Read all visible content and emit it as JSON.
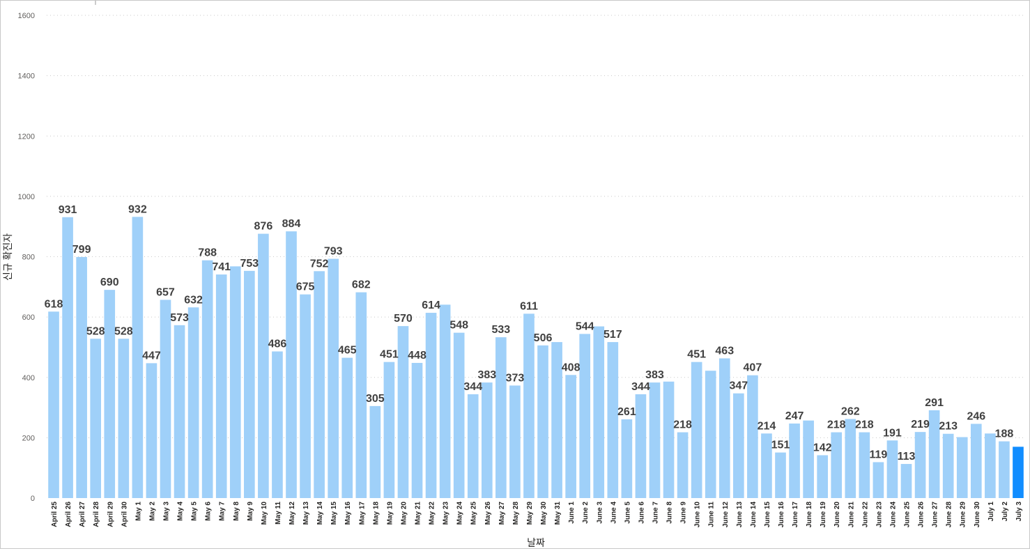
{
  "chart_data": {
    "type": "bar",
    "title": "",
    "xlabel": "날짜",
    "ylabel": "신규 확진자",
    "ylim": [
      0,
      1600
    ],
    "yticks": [
      0,
      200,
      400,
      600,
      800,
      1000,
      1200,
      1400,
      1600
    ],
    "grid": true,
    "base_color": "#9fd0f9",
    "highlight_color": "#118dff",
    "highlight_category": "July 3",
    "categories": [
      "April 25",
      "April 26",
      "April 27",
      "April 28",
      "April 29",
      "April 30",
      "May 1",
      "May 2",
      "May 3",
      "May 4",
      "May 5",
      "May 6",
      "May 7",
      "May 8",
      "May 9",
      "May 10",
      "May 11",
      "May 12",
      "May 13",
      "May 14",
      "May 15",
      "May 16",
      "May 17",
      "May 18",
      "May 19",
      "May 20",
      "May 21",
      "May 22",
      "May 23",
      "May 24",
      "May 25",
      "May 26",
      "May 27",
      "May 28",
      "May 29",
      "May 30",
      "May 31",
      "June 1",
      "June 2",
      "June 3",
      "June 4",
      "June 5",
      "June 6",
      "June 7",
      "June 8",
      "June 9",
      "June 10",
      "June 11",
      "June 12",
      "June 13",
      "June 14",
      "June 15",
      "June 16",
      "June 17",
      "June 18",
      "June 19",
      "June 20",
      "June 21",
      "June 22",
      "June 23",
      "June 24",
      "June 25",
      "June 26",
      "June 27",
      "June 28",
      "June 29",
      "June 30",
      "July 1",
      "July 2",
      "July 3"
    ],
    "values": [
      618,
      931,
      799,
      528,
      690,
      528,
      932,
      447,
      657,
      573,
      632,
      788,
      741,
      768,
      753,
      876,
      486,
      884,
      675,
      752,
      793,
      465,
      682,
      305,
      451,
      570,
      448,
      614,
      641,
      548,
      344,
      383,
      533,
      373,
      611,
      506,
      517,
      408,
      544,
      569,
      517,
      261,
      344,
      383,
      386,
      218,
      451,
      422,
      463,
      347,
      407,
      214,
      151,
      247,
      257,
      142,
      218,
      262,
      218,
      119,
      191,
      113,
      219,
      291,
      213,
      202,
      246,
      214,
      188,
      170
    ],
    "data_labels": [
      {
        "category": "April 25",
        "label": "618"
      },
      {
        "category": "April 26",
        "label": "931"
      },
      {
        "category": "April 27",
        "label": "799"
      },
      {
        "category": "April 28",
        "label": "528"
      },
      {
        "category": "April 29",
        "label": "690"
      },
      {
        "category": "April 30",
        "label": "528"
      },
      {
        "category": "May 1",
        "label": "932"
      },
      {
        "category": "May 2",
        "label": "447"
      },
      {
        "category": "May 3",
        "label": "657"
      },
      {
        "category": "May 4",
        "label": "573"
      },
      {
        "category": "May 5",
        "label": "632"
      },
      {
        "category": "May 6",
        "label": "788"
      },
      {
        "category": "May 7",
        "label": "741"
      },
      {
        "category": "May 9",
        "label": "753"
      },
      {
        "category": "May 10",
        "label": "876"
      },
      {
        "category": "May 11",
        "label": "486"
      },
      {
        "category": "May 12",
        "label": "884"
      },
      {
        "category": "May 13",
        "label": "675"
      },
      {
        "category": "May 14",
        "label": "752"
      },
      {
        "category": "May 15",
        "label": "793"
      },
      {
        "category": "May 16",
        "label": "465"
      },
      {
        "category": "May 17",
        "label": "682"
      },
      {
        "category": "May 18",
        "label": "305"
      },
      {
        "category": "May 19",
        "label": "451"
      },
      {
        "category": "May 20",
        "label": "570"
      },
      {
        "category": "May 21",
        "label": "448"
      },
      {
        "category": "May 22",
        "label": "614"
      },
      {
        "category": "May 24",
        "label": "548"
      },
      {
        "category": "May 25",
        "label": "344"
      },
      {
        "category": "May 26",
        "label": "383"
      },
      {
        "category": "May 27",
        "label": "533"
      },
      {
        "category": "May 28",
        "label": "373"
      },
      {
        "category": "May 29",
        "label": "611"
      },
      {
        "category": "May 30",
        "label": "506"
      },
      {
        "category": "June 1",
        "label": "408"
      },
      {
        "category": "June 2",
        "label": "544"
      },
      {
        "category": "June 4",
        "label": "517"
      },
      {
        "category": "June 5",
        "label": "261"
      },
      {
        "category": "June 6",
        "label": "344"
      },
      {
        "category": "June 7",
        "label": "383"
      },
      {
        "category": "June 9",
        "label": "218"
      },
      {
        "category": "June 10",
        "label": "451"
      },
      {
        "category": "June 12",
        "label": "463"
      },
      {
        "category": "June 13",
        "label": "347"
      },
      {
        "category": "June 14",
        "label": "407"
      },
      {
        "category": "June 15",
        "label": "214"
      },
      {
        "category": "June 16",
        "label": "151"
      },
      {
        "category": "June 17",
        "label": "247"
      },
      {
        "category": "June 19",
        "label": "142"
      },
      {
        "category": "June 20",
        "label": "218"
      },
      {
        "category": "June 21",
        "label": "262"
      },
      {
        "category": "June 22",
        "label": "218"
      },
      {
        "category": "June 23",
        "label": "119"
      },
      {
        "category": "June 24",
        "label": "191"
      },
      {
        "category": "June 25",
        "label": "113"
      },
      {
        "category": "June 26",
        "label": "219"
      },
      {
        "category": "June 27",
        "label": "291"
      },
      {
        "category": "June 28",
        "label": "213"
      },
      {
        "category": "June 30",
        "label": "246"
      },
      {
        "category": "July 2",
        "label": "188"
      }
    ]
  }
}
